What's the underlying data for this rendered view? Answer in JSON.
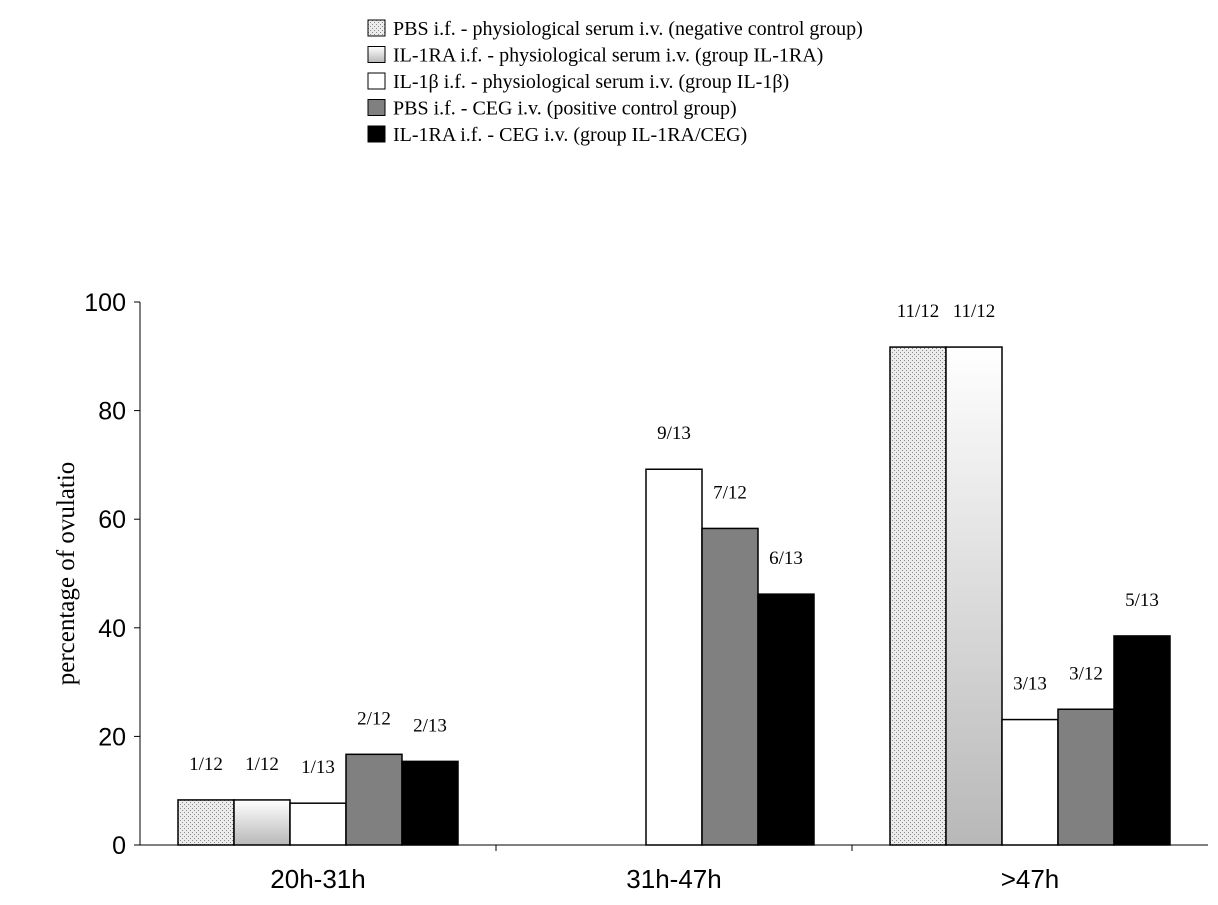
{
  "chart_data": {
    "type": "bar",
    "title": "",
    "xlabel": "",
    "ylabel": "percentage of ovulatio",
    "ylim": [
      0,
      100
    ],
    "yticks": [
      0,
      20,
      40,
      60,
      80,
      100
    ],
    "grid": false,
    "legend_position": "top-center",
    "categories": [
      "20h-31h",
      "31h-47h",
      ">47h"
    ],
    "series": [
      {
        "name": "PBS i.f. - physiological serum i.v. (negative control group)",
        "fill": "dotted",
        "color": "#d4d4d4",
        "values": [
          8.3,
          0,
          91.7
        ],
        "labels": [
          "1/12",
          "",
          "11/12"
        ]
      },
      {
        "name": "IL-1RA i.f. - physiological serum i.v. (group IL-1RA)",
        "fill": "gradient",
        "color": "#c0c0c0",
        "values": [
          8.3,
          0,
          91.7
        ],
        "labels": [
          "1/12",
          "",
          "11/12"
        ]
      },
      {
        "name": "IL-1β i.f. - physiological serum i.v. (group IL-1β)",
        "fill": "solid",
        "color": "#ffffff",
        "values": [
          7.7,
          69.2,
          23.1
        ],
        "labels": [
          "1/13",
          "9/13",
          "3/13"
        ]
      },
      {
        "name": "PBS i.f. - CEG i.v. (positive control group)",
        "fill": "solid",
        "color": "#808080",
        "values": [
          16.7,
          58.3,
          25.0
        ],
        "labels": [
          "2/12",
          "7/12",
          "3/12"
        ]
      },
      {
        "name": "IL-1RA i.f. - CEG i.v. (group IL-1RA/CEG)",
        "fill": "solid",
        "color": "#000000",
        "values": [
          15.4,
          46.2,
          38.5
        ],
        "labels": [
          "2/13",
          "6/13",
          "5/13"
        ]
      }
    ]
  }
}
